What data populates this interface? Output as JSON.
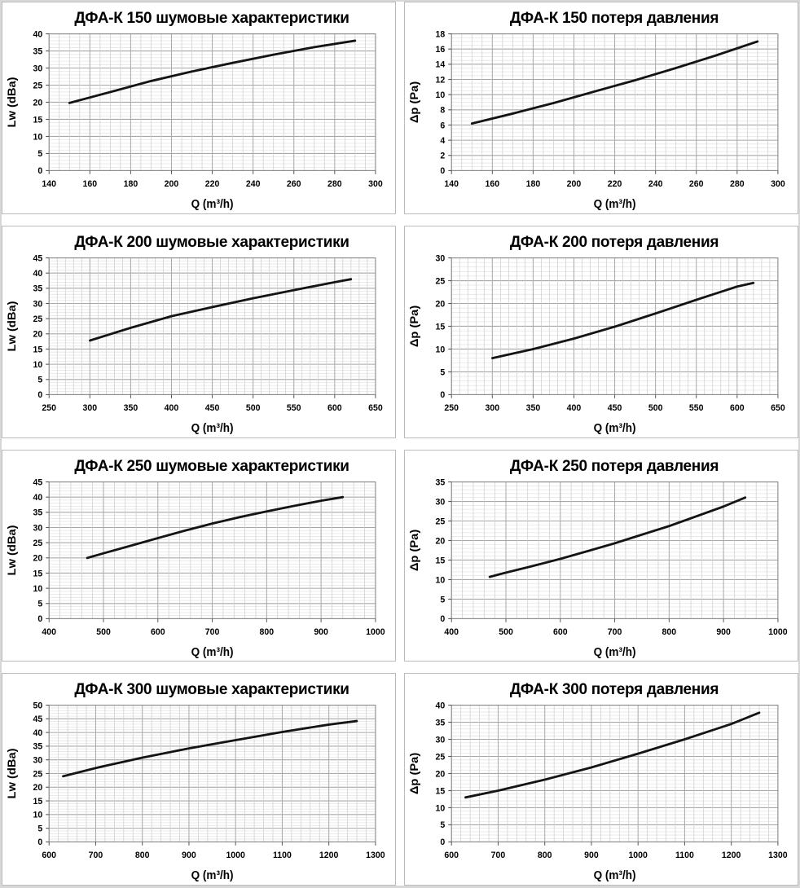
{
  "colors": {
    "curve": "#141414",
    "grid_minor_h": "#e4e4e4",
    "grid_minor_v": "#cccccc",
    "grid_major": "#a8a8a8",
    "plot_border": "#8c8c8c",
    "tick": "#555555",
    "panel_border": "#bcbcbc",
    "panel_bg": "#ffffff",
    "page_frame": "#d7d7d7",
    "text": "#000000"
  },
  "chart_data": [
    {
      "type": "line",
      "title": "ДФА-К 150 шумовые характеристики",
      "xlabel": "Q (m³/h)",
      "ylabel": "Lw (dBa)",
      "xlim": [
        140,
        300
      ],
      "x_major": 20,
      "x_minor": 5,
      "ylim": [
        0,
        40
      ],
      "y_major": 5,
      "y_minor": 1,
      "grid": true,
      "legend": "none",
      "series": [
        {
          "name": "Lw",
          "x": [
            150,
            170,
            190,
            210,
            230,
            250,
            270,
            290
          ],
          "y": [
            19.8,
            23.0,
            26.2,
            29.0,
            31.5,
            33.9,
            36.1,
            38.0
          ]
        }
      ]
    },
    {
      "type": "line",
      "title": "ДФА-К 150 потеря давления",
      "xlabel": "Q (m³/h)",
      "ylabel": "Δp (Pa)",
      "xlim": [
        140,
        300
      ],
      "x_major": 20,
      "x_minor": 5,
      "ylim": [
        0,
        18
      ],
      "y_major": 2,
      "y_minor": 0.5,
      "grid": true,
      "legend": "none",
      "series": [
        {
          "name": "Δp",
          "x": [
            150,
            170,
            190,
            210,
            230,
            250,
            270,
            290
          ],
          "y": [
            6.2,
            7.5,
            8.9,
            10.4,
            11.9,
            13.5,
            15.2,
            17.0
          ]
        }
      ]
    },
    {
      "type": "line",
      "title": "ДФА-К 200 шумовые характеристики",
      "xlabel": "Q (m³/h)",
      "ylabel": "Lw (dBa)",
      "xlim": [
        250,
        650
      ],
      "x_major": 50,
      "x_minor": 10,
      "ylim": [
        0,
        45
      ],
      "y_major": 5,
      "y_minor": 1,
      "grid": true,
      "legend": "none",
      "series": [
        {
          "name": "Lw",
          "x": [
            300,
            350,
            400,
            450,
            500,
            550,
            600,
            620
          ],
          "y": [
            17.8,
            22.0,
            25.8,
            28.8,
            31.7,
            34.4,
            37.0,
            38.0
          ]
        }
      ]
    },
    {
      "type": "line",
      "title": "ДФА-К 200 потеря давления",
      "xlabel": "Q (m³/h)",
      "ylabel": "Δp (Pa)",
      "xlim": [
        250,
        650
      ],
      "x_major": 50,
      "x_minor": 10,
      "ylim": [
        0,
        30
      ],
      "y_major": 5,
      "y_minor": 1,
      "grid": true,
      "legend": "none",
      "series": [
        {
          "name": "Δp",
          "x": [
            300,
            350,
            400,
            450,
            500,
            550,
            600,
            620
          ],
          "y": [
            8.0,
            10.0,
            12.3,
            14.9,
            17.8,
            20.8,
            23.7,
            24.5
          ]
        }
      ]
    },
    {
      "type": "line",
      "title": "ДФА-К 250 шумовые характеристики",
      "xlabel": "Q (m³/h)",
      "ylabel": "Lw (dBa)",
      "xlim": [
        400,
        1000
      ],
      "x_major": 100,
      "x_minor": 20,
      "ylim": [
        0,
        45
      ],
      "y_major": 5,
      "y_minor": 1,
      "grid": true,
      "legend": "none",
      "series": [
        {
          "name": "Lw",
          "x": [
            470,
            500,
            550,
            600,
            650,
            700,
            750,
            800,
            850,
            900,
            940
          ],
          "y": [
            20.0,
            21.5,
            24.0,
            26.5,
            29.0,
            31.3,
            33.4,
            35.3,
            37.1,
            38.8,
            40.0
          ]
        }
      ]
    },
    {
      "type": "line",
      "title": "ДФА-К 250 потеря давления",
      "xlabel": "Q (m³/h)",
      "ylabel": "Δp (Pa)",
      "xlim": [
        400,
        1000
      ],
      "x_major": 100,
      "x_minor": 20,
      "ylim": [
        0,
        35
      ],
      "y_major": 5,
      "y_minor": 1,
      "grid": true,
      "legend": "none",
      "series": [
        {
          "name": "Δp",
          "x": [
            470,
            500,
            550,
            600,
            650,
            700,
            750,
            800,
            850,
            900,
            940
          ],
          "y": [
            10.7,
            11.8,
            13.5,
            15.3,
            17.3,
            19.3,
            21.5,
            23.7,
            26.2,
            28.7,
            31.0
          ]
        }
      ]
    },
    {
      "type": "line",
      "title": "ДФА-К 300 шумовые характеристики",
      "xlabel": "Q (m³/h)",
      "ylabel": "Lw (dBa)",
      "xlim": [
        600,
        1300
      ],
      "x_major": 100,
      "x_minor": 20,
      "ylim": [
        0,
        50
      ],
      "y_major": 5,
      "y_minor": 1,
      "grid": true,
      "legend": "none",
      "series": [
        {
          "name": "Lw",
          "x": [
            630,
            700,
            800,
            900,
            1000,
            1100,
            1200,
            1260
          ],
          "y": [
            24.0,
            27.0,
            30.8,
            34.2,
            37.2,
            40.2,
            42.9,
            44.2
          ]
        }
      ]
    },
    {
      "type": "line",
      "title": "ДФА-К 300 потеря давления",
      "xlabel": "Q (m³/h)",
      "ylabel": "Δp (Pa)",
      "xlim": [
        600,
        1300
      ],
      "x_major": 100,
      "x_minor": 20,
      "ylim": [
        0,
        40
      ],
      "y_major": 5,
      "y_minor": 1,
      "grid": true,
      "legend": "none",
      "series": [
        {
          "name": "Δp",
          "x": [
            630,
            700,
            800,
            900,
            1000,
            1100,
            1200,
            1260
          ],
          "y": [
            13.0,
            15.0,
            18.2,
            21.8,
            25.8,
            30.0,
            34.5,
            37.8
          ]
        }
      ]
    }
  ]
}
